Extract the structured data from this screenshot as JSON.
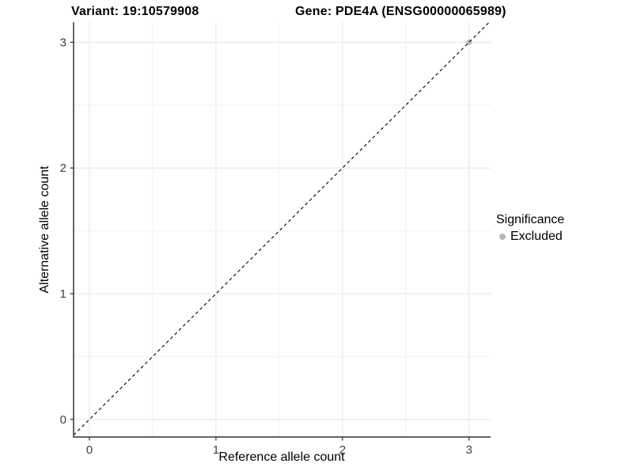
{
  "chart_data": {
    "type": "scatter",
    "title_left": "Variant: 19:10579908",
    "title_right": "Gene: PDE4A (ENSG00000065989)",
    "xlabel": "Reference allele count",
    "ylabel": "Alternative allele count",
    "xlim": [
      -0.125,
      3.17
    ],
    "ylim": [
      -0.14,
      3.16
    ],
    "x_ticks": [
      0,
      1,
      2,
      3
    ],
    "y_ticks": [
      0,
      1,
      2,
      3
    ],
    "minor_step": 0.5,
    "grid": true,
    "identity_line": {
      "style": "dashed",
      "slope": 1,
      "intercept": 0,
      "color": "#000000"
    },
    "series": [
      {
        "name": "Excluded",
        "color": "#b8b8b8",
        "points": [
          {
            "x": 3,
            "y": 3
          }
        ]
      }
    ],
    "legend": {
      "position": "right",
      "title": "Significance",
      "items": [
        {
          "label": "Excluded",
          "color": "#b8b8b8"
        }
      ]
    },
    "colors": {
      "axis": "#333333",
      "tick_label": "#404040",
      "grid_major": "#e4e4e4",
      "grid_minor": "#f0f0f0",
      "background": "#ffffff"
    }
  }
}
